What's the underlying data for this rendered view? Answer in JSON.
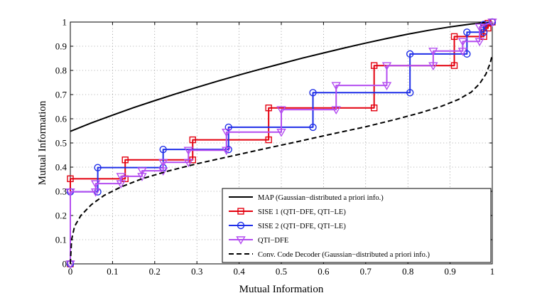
{
  "chart_data": {
    "type": "line",
    "title": "",
    "xlabel": "Mutual Information",
    "ylabel": "Mutual Information",
    "xlim": [
      0,
      1
    ],
    "ylim": [
      0,
      1
    ],
    "x_ticks": [
      "0",
      "0.1",
      "0.2",
      "0.3",
      "0.4",
      "0.5",
      "0.6",
      "0.7",
      "0.8",
      "0.9",
      "1"
    ],
    "y_ticks": [
      "0",
      "0.1",
      "0.2",
      "0.3",
      "0.4",
      "0.5",
      "0.6",
      "0.7",
      "0.8",
      "0.9",
      "1"
    ],
    "grid": true,
    "legend_position": "bottom-right",
    "series": [
      {
        "name": "MAP (Gaussian−distributed a priori info.)",
        "color": "#000000",
        "style": "solid",
        "marker": "none",
        "x": [
          0,
          0.05,
          0.1,
          0.15,
          0.2,
          0.25,
          0.3,
          0.35,
          0.4,
          0.45,
          0.5,
          0.55,
          0.6,
          0.65,
          0.7,
          0.75,
          0.8,
          0.85,
          0.9,
          0.95,
          1.0
        ],
        "y": [
          0.548,
          0.583,
          0.615,
          0.646,
          0.675,
          0.703,
          0.73,
          0.756,
          0.781,
          0.805,
          0.828,
          0.851,
          0.872,
          0.893,
          0.913,
          0.932,
          0.95,
          0.966,
          0.98,
          0.992,
          1.0
        ]
      },
      {
        "name": "SISE 1 (QTI−DFE, QTI−LE)",
        "color": "#e3000f",
        "style": "solid",
        "marker": "square",
        "x": [
          0,
          0,
          0.13,
          0.13,
          0.29,
          0.29,
          0.47,
          0.47,
          0.72,
          0.72,
          0.91,
          0.91,
          0.98,
          0.98,
          0.99,
          0.99,
          1.0
        ],
        "y": [
          0,
          0.352,
          0.352,
          0.43,
          0.43,
          0.513,
          0.513,
          0.645,
          0.645,
          0.82,
          0.82,
          0.94,
          0.94,
          0.975,
          0.975,
          0.995,
          1.0
        ]
      },
      {
        "name": "SISE 2 (QTI−DFE, QTI−LE)",
        "color": "#1f2fe8",
        "style": "solid",
        "marker": "circle",
        "x": [
          0,
          0,
          0.065,
          0.065,
          0.22,
          0.22,
          0.375,
          0.375,
          0.575,
          0.575,
          0.805,
          0.805,
          0.94,
          0.94,
          0.98,
          0.98,
          1.0
        ],
        "y": [
          0,
          0.298,
          0.298,
          0.398,
          0.398,
          0.473,
          0.473,
          0.565,
          0.565,
          0.708,
          0.708,
          0.868,
          0.868,
          0.958,
          0.958,
          0.99,
          1.0
        ]
      },
      {
        "name": "QTI−DFE",
        "color": "#b44df0",
        "style": "solid",
        "marker": "triangle-down",
        "x": [
          0,
          0,
          0.06,
          0.06,
          0.12,
          0.12,
          0.17,
          0.17,
          0.22,
          0.22,
          0.28,
          0.28,
          0.37,
          0.37,
          0.5,
          0.5,
          0.63,
          0.63,
          0.75,
          0.75,
          0.86,
          0.86,
          0.93,
          0.93,
          0.97,
          0.97,
          1.0
        ],
        "y": [
          0,
          0.298,
          0.298,
          0.332,
          0.332,
          0.362,
          0.362,
          0.385,
          0.385,
          0.42,
          0.42,
          0.47,
          0.47,
          0.545,
          0.545,
          0.638,
          0.638,
          0.738,
          0.738,
          0.82,
          0.82,
          0.88,
          0.88,
          0.92,
          0.92,
          0.98,
          1.0
        ]
      },
      {
        "name": "Conv. Code Decoder (Gaussian−distributed a priori info.)",
        "color": "#000000",
        "style": "dashed",
        "marker": "none",
        "x": [
          0,
          0.003,
          0.01,
          0.025,
          0.05,
          0.08,
          0.12,
          0.17,
          0.23,
          0.3,
          0.38,
          0.46,
          0.54,
          0.62,
          0.7,
          0.77,
          0.83,
          0.88,
          0.92,
          0.95,
          0.97,
          0.985,
          0.995,
          1.0
        ],
        "y": [
          0,
          0.1,
          0.155,
          0.2,
          0.245,
          0.283,
          0.318,
          0.352,
          0.383,
          0.414,
          0.445,
          0.476,
          0.506,
          0.537,
          0.567,
          0.597,
          0.625,
          0.652,
          0.68,
          0.71,
          0.745,
          0.785,
          0.83,
          0.865
        ]
      }
    ]
  }
}
